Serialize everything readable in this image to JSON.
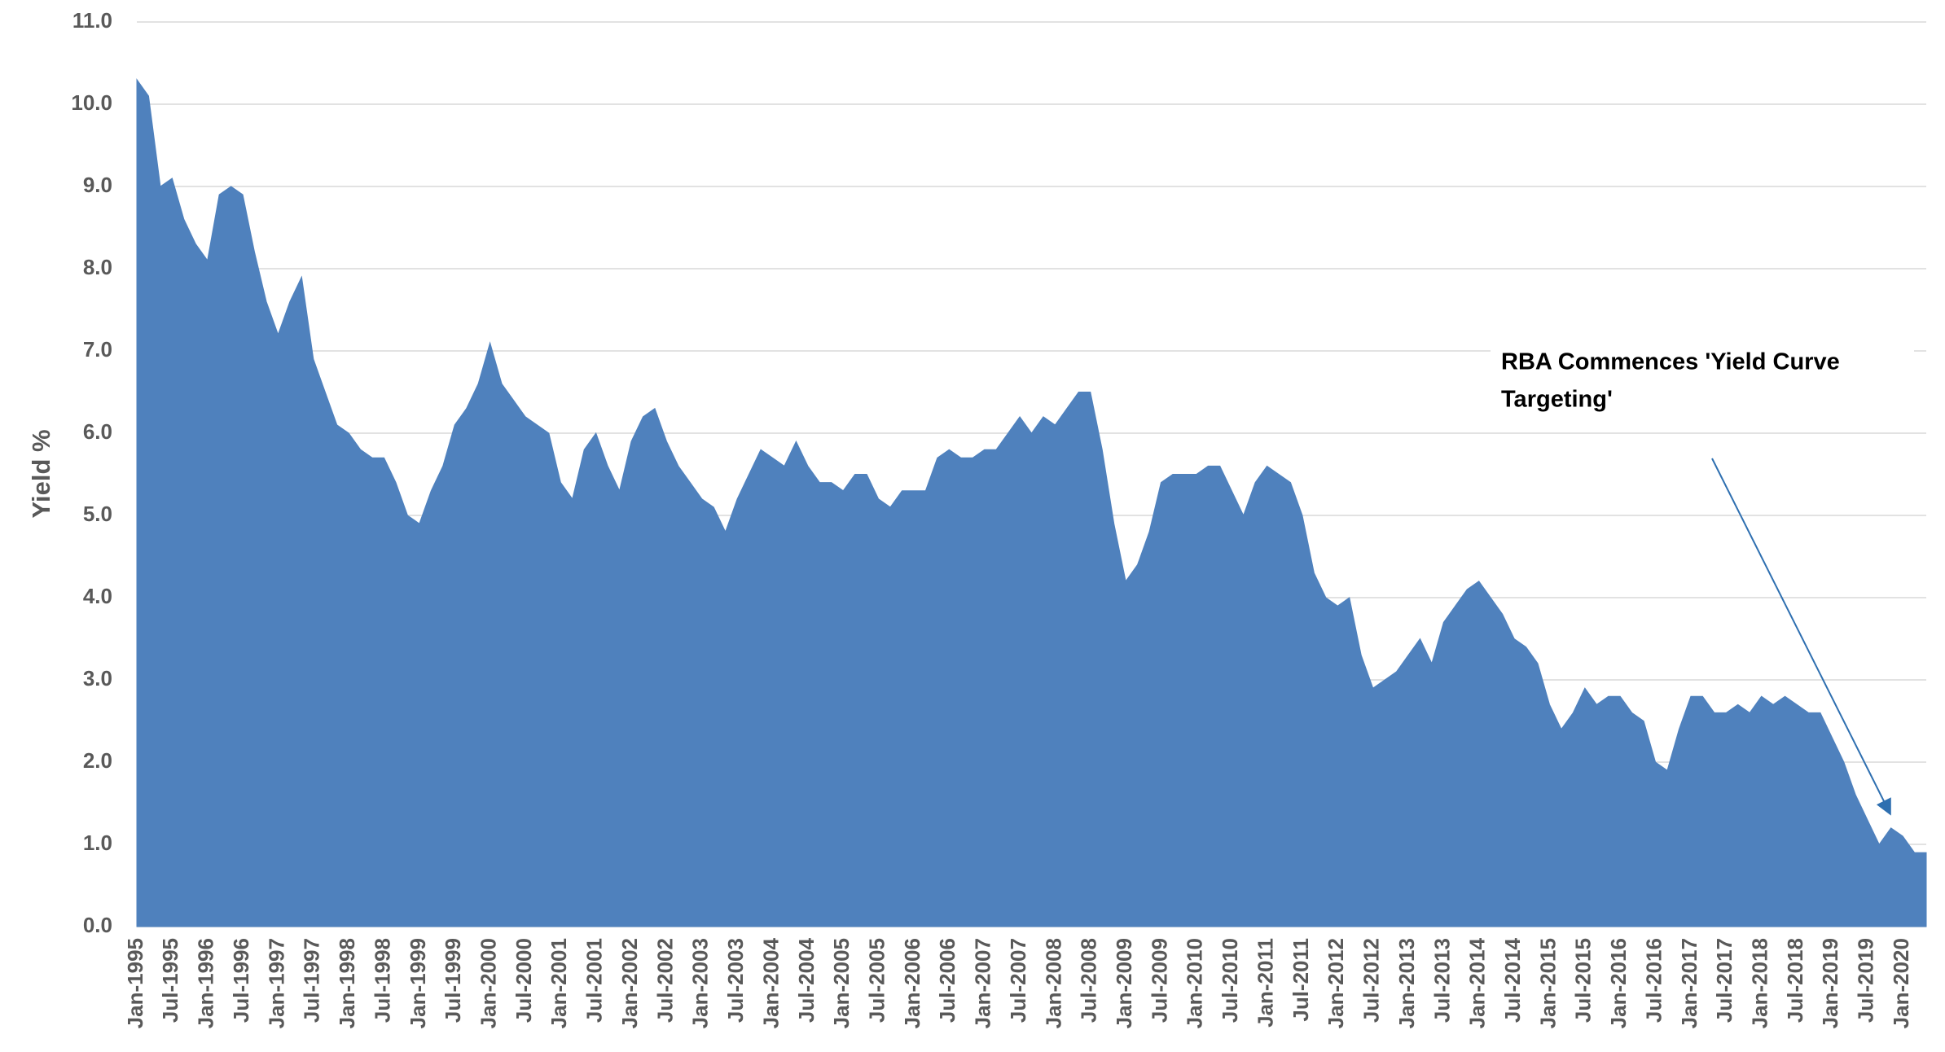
{
  "chart_data": {
    "type": "area",
    "y_label": "Yield %",
    "annotation": [
      "RBA Commences 'Yield Curve",
      "Targeting'"
    ],
    "color": "#4f81bd",
    "grid": true,
    "ylim": [
      0,
      11
    ],
    "yticks": [
      {
        "value": 0,
        "label": "0.0"
      },
      {
        "value": 1,
        "label": "1.0"
      },
      {
        "value": 2,
        "label": "2.0"
      },
      {
        "value": 3,
        "label": "3.0"
      },
      {
        "value": 4,
        "label": "4.0"
      },
      {
        "value": 5,
        "label": "5.0"
      },
      {
        "value": 6,
        "label": "6.0"
      },
      {
        "value": 7,
        "label": "7.0"
      },
      {
        "value": 8,
        "label": "8.0"
      },
      {
        "value": 9,
        "label": "9.0"
      },
      {
        "value": 10,
        "label": "10.0"
      },
      {
        "value": 11,
        "label": "11.0"
      }
    ],
    "categories": [
      "Jan-1995",
      null,
      null,
      "Jul-1995",
      null,
      null,
      "Jan-1996",
      null,
      null,
      "Jul-1996",
      null,
      null,
      "Jan-1997",
      null,
      null,
      "Jul-1997",
      null,
      null,
      "Jan-1998",
      null,
      null,
      "Jul-1998",
      null,
      null,
      "Jan-1999",
      null,
      null,
      "Jul-1999",
      null,
      null,
      "Jan-2000",
      null,
      null,
      "Jul-2000",
      null,
      null,
      "Jan-2001",
      null,
      null,
      "Jul-2001",
      null,
      null,
      "Jan-2002",
      null,
      null,
      "Jul-2002",
      null,
      null,
      "Jan-2003",
      null,
      null,
      "Jul-2003",
      null,
      null,
      "Jan-2004",
      null,
      null,
      "Jul-2004",
      null,
      null,
      "Jan-2005",
      null,
      null,
      "Jul-2005",
      null,
      null,
      "Jan-2006",
      null,
      null,
      "Jul-2006",
      null,
      null,
      "Jan-2007",
      null,
      null,
      "Jul-2007",
      null,
      null,
      "Jan-2008",
      null,
      null,
      "Jul-2008",
      null,
      null,
      "Jan-2009",
      null,
      null,
      "Jul-2009",
      null,
      null,
      "Jan-2010",
      null,
      null,
      "Jul-2010",
      null,
      null,
      "Jan-2011",
      null,
      null,
      "Jul-2011",
      null,
      null,
      "Jan-2012",
      null,
      null,
      "Jul-2012",
      null,
      null,
      "Jan-2013",
      null,
      null,
      "Jul-2013",
      null,
      null,
      "Jan-2014",
      null,
      null,
      "Jul-2014",
      null,
      null,
      "Jan-2015",
      null,
      null,
      "Jul-2015",
      null,
      null,
      "Jan-2016",
      null,
      null,
      "Jul-2016",
      null,
      null,
      "Jan-2017",
      null,
      null,
      "Jul-2017",
      null,
      null,
      "Jan-2018",
      null,
      null,
      "Jul-2018",
      null,
      null,
      "Jan-2019",
      null,
      null,
      "Jul-2019",
      null,
      null,
      "Jan-2020",
      null,
      null
    ],
    "values": [
      10.3,
      10.1,
      9.0,
      9.1,
      8.6,
      8.3,
      8.1,
      8.9,
      9.0,
      8.9,
      8.2,
      7.6,
      7.2,
      7.6,
      7.9,
      6.9,
      6.5,
      6.1,
      6.0,
      5.8,
      5.7,
      5.7,
      5.4,
      5.0,
      4.9,
      5.3,
      5.6,
      6.1,
      6.3,
      6.6,
      7.1,
      6.6,
      6.4,
      6.2,
      6.1,
      6.0,
      5.4,
      5.2,
      5.8,
      6.0,
      5.6,
      5.3,
      5.9,
      6.2,
      6.3,
      5.9,
      5.6,
      5.4,
      5.2,
      5.1,
      4.8,
      5.2,
      5.5,
      5.8,
      5.7,
      5.6,
      5.9,
      5.6,
      5.4,
      5.4,
      5.3,
      5.5,
      5.5,
      5.2,
      5.1,
      5.3,
      5.3,
      5.3,
      5.7,
      5.8,
      5.7,
      5.7,
      5.8,
      5.8,
      6.0,
      6.2,
      6.0,
      6.2,
      6.1,
      6.3,
      6.5,
      6.5,
      5.8,
      4.9,
      4.2,
      4.4,
      4.8,
      5.4,
      5.5,
      5.5,
      5.5,
      5.6,
      5.6,
      5.3,
      5.0,
      5.4,
      5.6,
      5.5,
      5.4,
      5.0,
      4.3,
      4.0,
      3.9,
      4.0,
      3.3,
      2.9,
      3.0,
      3.1,
      3.3,
      3.5,
      3.2,
      3.7,
      3.9,
      4.1,
      4.2,
      4.0,
      3.8,
      3.5,
      3.4,
      3.2,
      2.7,
      2.4,
      2.6,
      2.9,
      2.7,
      2.8,
      2.8,
      2.6,
      2.5,
      2.0,
      1.9,
      2.4,
      2.8,
      2.8,
      2.6,
      2.6,
      2.7,
      2.6,
      2.8,
      2.7,
      2.8,
      2.7,
      2.6,
      2.6,
      2.3,
      2.0,
      1.6,
      1.3,
      1.0,
      1.2,
      1.1,
      0.9,
      0.9
    ]
  }
}
